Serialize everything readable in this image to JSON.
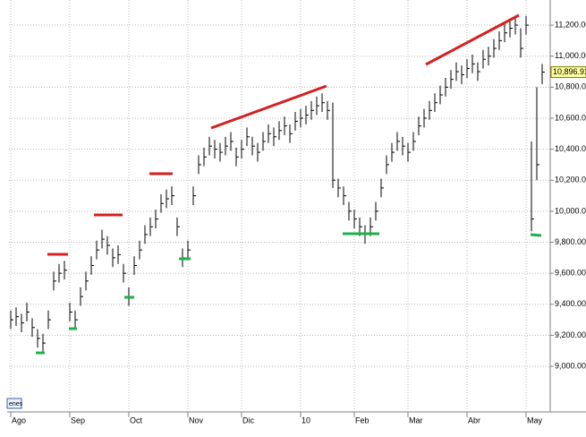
{
  "chart_data": {
    "type": "ohlc",
    "color": "#000000",
    "grid": true,
    "categories": [
      "Ago",
      null,
      null,
      null,
      null,
      null,
      null,
      null,
      null,
      null,
      null,
      "Sep",
      null,
      null,
      null,
      null,
      null,
      null,
      null,
      null,
      null,
      null,
      "Oct",
      null,
      null,
      null,
      null,
      null,
      null,
      null,
      null,
      null,
      null,
      "Nov",
      null,
      null,
      null,
      null,
      null,
      null,
      null,
      null,
      null,
      "Dic",
      null,
      null,
      null,
      null,
      null,
      null,
      null,
      null,
      null,
      null,
      "10",
      null,
      null,
      null,
      null,
      null,
      null,
      null,
      null,
      null,
      "Feb",
      null,
      null,
      null,
      null,
      null,
      null,
      null,
      null,
      null,
      "Mar",
      null,
      null,
      null,
      null,
      null,
      null,
      null,
      null,
      null,
      null,
      "Abr",
      null,
      null,
      null,
      null,
      null,
      null,
      null,
      null,
      null,
      null,
      "May",
      null,
      null,
      null
    ],
    "high": [
      9360,
      9380,
      9340,
      9410,
      9310,
      9240,
      9210,
      9360,
      9610,
      9660,
      9680,
      9410,
      9360,
      9510,
      9610,
      9710,
      9810,
      9880,
      9840,
      9760,
      9780,
      9660,
      9510,
      9710,
      9810,
      9910,
      9960,
      10010,
      10110,
      10140,
      10160,
      9960,
      9760,
      9810,
      10160,
      10360,
      10410,
      10480,
      10460,
      10440,
      10480,
      10510,
      10410,
      10460,
      10540,
      10480,
      10440,
      10510,
      10560,
      10540,
      10580,
      10610,
      10560,
      10640,
      10660,
      10680,
      10710,
      10740,
      10760,
      10710,
      10700,
      10210,
      10160,
      10060,
      10010,
      9960,
      9910,
      9960,
      10060,
      10210,
      10360,
      10440,
      10510,
      10480,
      10440,
      10510,
      10610,
      10660,
      10710,
      10760,
      10810,
      10860,
      10910,
      10960,
      10940,
      10980,
      11010,
      10960,
      11040,
      11060,
      11110,
      11160,
      11210,
      11240,
      11260,
      11180,
      11260,
      10450,
      10800,
      10950
    ],
    "low": [
      9240,
      9260,
      9220,
      9290,
      9190,
      9120,
      9090,
      9240,
      9490,
      9540,
      9560,
      9290,
      9240,
      9390,
      9490,
      9590,
      9690,
      9760,
      9720,
      9640,
      9660,
      9540,
      9390,
      9590,
      9690,
      9790,
      9840,
      9890,
      9990,
      10020,
      10040,
      9840,
      9640,
      9690,
      10040,
      10240,
      10290,
      10360,
      10340,
      10320,
      10360,
      10390,
      10290,
      10340,
      10420,
      10360,
      10320,
      10390,
      10440,
      10420,
      10460,
      10490,
      10440,
      10520,
      10540,
      10560,
      10590,
      10620,
      10640,
      10590,
      10150,
      10090,
      10040,
      9940,
      9890,
      9840,
      9790,
      9840,
      9940,
      10090,
      10240,
      10320,
      10390,
      10360,
      10320,
      10390,
      10490,
      10540,
      10590,
      10640,
      10690,
      10740,
      10790,
      10840,
      10820,
      10860,
      10890,
      10840,
      10920,
      10940,
      10990,
      11040,
      11090,
      11120,
      11140,
      10990,
      11140,
      9870,
      10200,
      10820
    ],
    "close": [
      9300,
      9320,
      9280,
      9350,
      9250,
      9180,
      9150,
      9300,
      9550,
      9600,
      9620,
      9350,
      9300,
      9450,
      9550,
      9650,
      9750,
      9820,
      9780,
      9700,
      9720,
      9600,
      9450,
      9650,
      9750,
      9850,
      9900,
      9950,
      10050,
      10080,
      10100,
      9900,
      9700,
      9750,
      10100,
      10300,
      10350,
      10420,
      10400,
      10380,
      10420,
      10450,
      10350,
      10400,
      10480,
      10420,
      10380,
      10450,
      10500,
      10480,
      10520,
      10550,
      10500,
      10580,
      10600,
      10620,
      10650,
      10680,
      10700,
      10650,
      10200,
      10150,
      10100,
      10000,
      9950,
      9900,
      9850,
      9900,
      10000,
      10150,
      10300,
      10380,
      10450,
      10420,
      10380,
      10450,
      10550,
      10600,
      10650,
      10700,
      10750,
      10800,
      10850,
      10900,
      10880,
      10920,
      10950,
      10900,
      10980,
      11000,
      11050,
      11100,
      11150,
      11180,
      11200,
      11050,
      11200,
      9950,
      10300,
      10896.91
    ],
    "ylim": [
      8706,
      11362
    ],
    "yticks": [
      {
        "value": 9000,
        "label": "9,000.00"
      },
      {
        "value": 9200,
        "label": "9,200.00"
      },
      {
        "value": 9400,
        "label": "9,400.00"
      },
      {
        "value": 9600,
        "label": "9,600.00"
      },
      {
        "value": 9800,
        "label": "9,800.00"
      },
      {
        "value": 10000,
        "label": "10,000.00"
      },
      {
        "value": 10200,
        "label": "10,200.00"
      },
      {
        "value": 10400,
        "label": "10,400.00"
      },
      {
        "value": 10600,
        "label": "10,600.00"
      },
      {
        "value": 10800,
        "label": "10,800.00"
      },
      {
        "value": 11000,
        "label": "11,000.00"
      },
      {
        "value": 11200,
        "label": "11,200.00"
      }
    ],
    "last_price": {
      "value": 10896.91,
      "label": "10,896.91"
    },
    "period_label": "enes"
  }
}
